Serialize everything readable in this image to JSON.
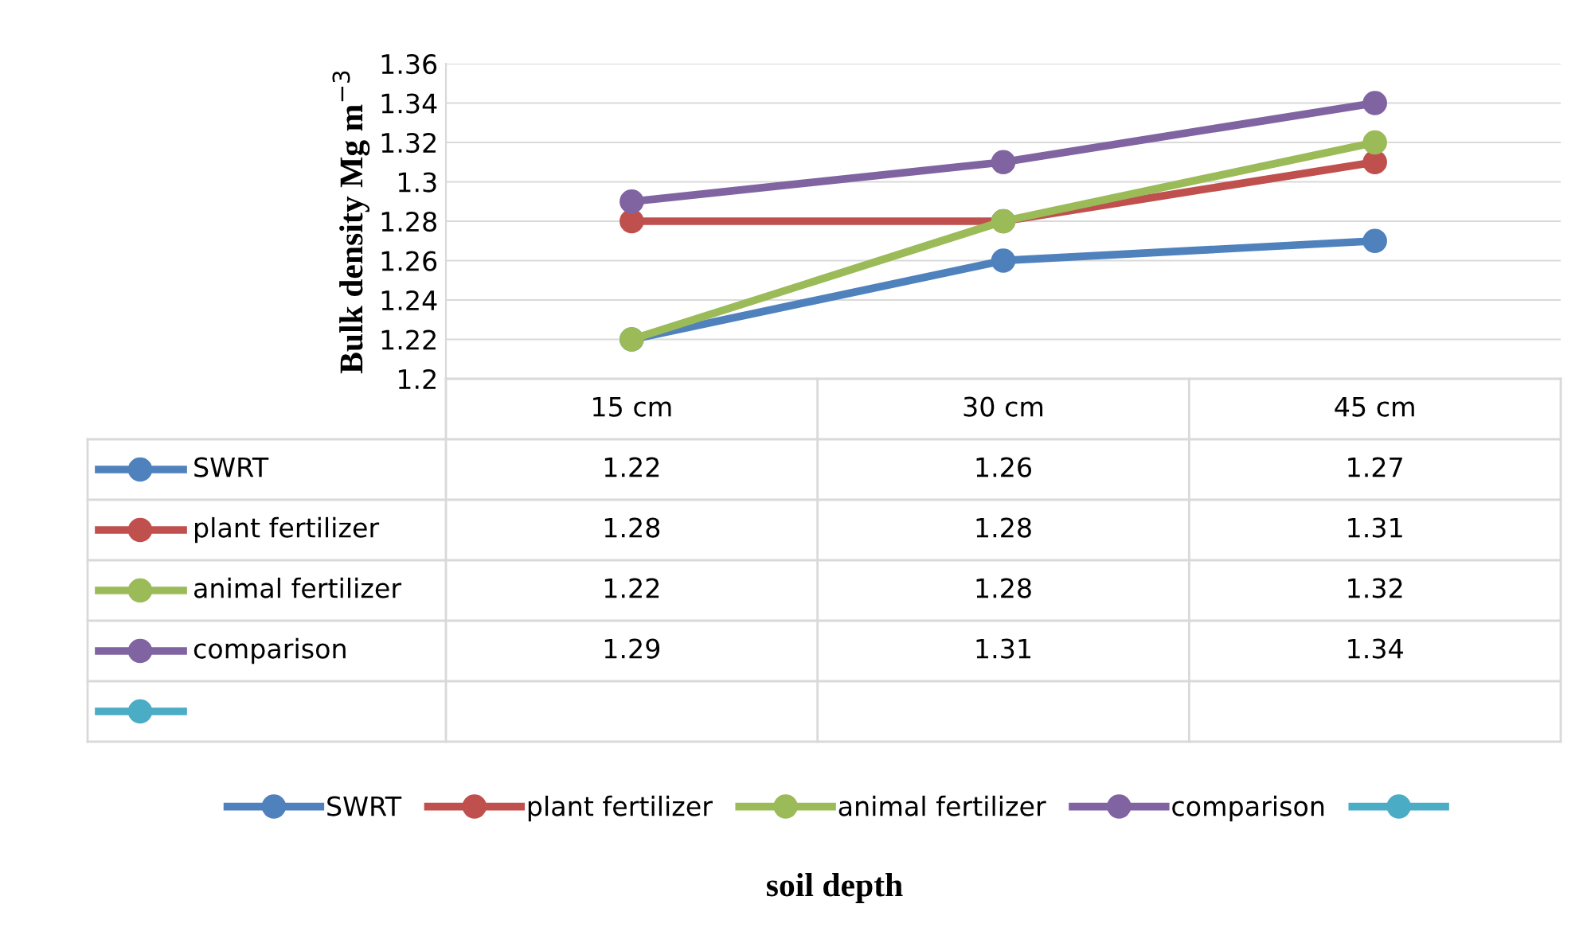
{
  "chart_data": {
    "type": "line",
    "annotations": [
      "soil depth"
    ],
    "ylabel": "Bulk density Mg m$^{−3}$",
    "categories": [
      "15 cm",
      "30 cm",
      "45 cm"
    ],
    "series": [
      {
        "name": "SWRT",
        "color": "#4f81bd",
        "values": [
          1.22,
          1.26,
          1.27
        ]
      },
      {
        "name": "plant fertilizer",
        "color": "#c0504d",
        "values": [
          1.28,
          1.28,
          1.31
        ]
      },
      {
        "name": "animal fertilizer",
        "color": "#9bbb59",
        "values": [
          1.22,
          1.28,
          1.32
        ]
      },
      {
        "name": "comparison",
        "color": "#8064a2",
        "values": [
          1.29,
          1.31,
          1.34
        ]
      },
      {
        "color": "#4bacc6",
        "values": [
          null,
          null,
          null
        ]
      }
    ],
    "ylim": [
      1.2,
      1.36
    ],
    "yticks": [
      1.2,
      1.22,
      1.24,
      1.26,
      1.28,
      1.3,
      1.32,
      1.34,
      1.36
    ],
    "grid": "y",
    "legend": "bottom",
    "marker": "circle",
    "line_style": "solid",
    "data_labels": true
  }
}
